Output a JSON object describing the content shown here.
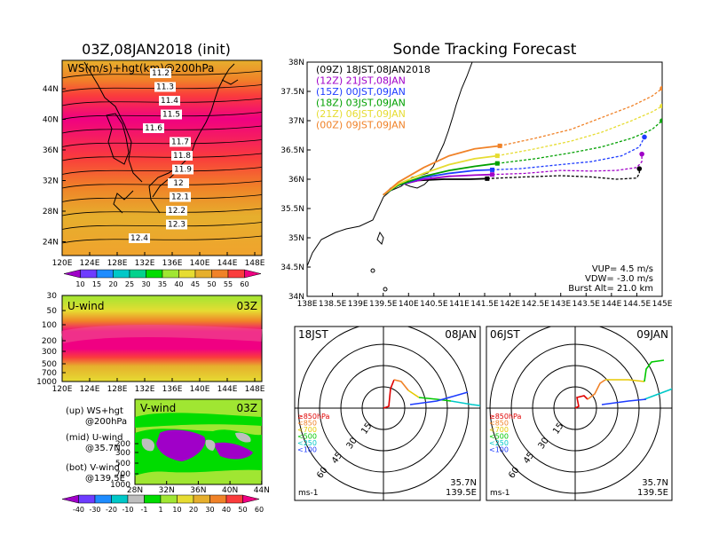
{
  "left": {
    "title": "03Z,08JAN2018 (init)",
    "map_label": "WS(m/s)+hgt(km)@200hPa",
    "lat_ticks": [
      "44N",
      "40N",
      "36N",
      "32N",
      "28N",
      "24N"
    ],
    "lon_ticks": [
      "120E",
      "124E",
      "128E",
      "132E",
      "136E",
      "140E",
      "144E",
      "148E"
    ],
    "contours": [
      "11.2",
      "11.3",
      "11.4",
      "11.5",
      "11.6",
      "11.7",
      "11.8",
      "11.9",
      "12",
      "12.1",
      "12.2",
      "12.3",
      "12.4"
    ],
    "ws_colorbar": [
      "10",
      "15",
      "20",
      "25",
      "30",
      "35",
      "40",
      "45",
      "50",
      "55",
      "60"
    ],
    "uwind_label": "U-wind",
    "uwind_time": "03Z",
    "p_ticks": [
      "30",
      "50",
      "100",
      "200",
      "300",
      "500",
      "700",
      "1000"
    ],
    "vwind_label": "V-wind",
    "vwind_time": "03Z",
    "vwind_p_ticks": [
      "200",
      "300",
      "500",
      "700",
      "1000"
    ],
    "vwind_lat_ticks": [
      "28N",
      "32N",
      "36N",
      "40N",
      "44N"
    ],
    "wind_colorbar": [
      "-40",
      "-30",
      "-20",
      "-10",
      "-1",
      "1",
      "10",
      "20",
      "30",
      "40",
      "50",
      "60"
    ],
    "legend": [
      {
        "a": "(up) WS+hgt",
        "b": "@200hPa"
      },
      {
        "a": "(mid) U-wind",
        "b": "@35.7N"
      },
      {
        "a": "(bot) V-wind",
        "b": "@139.5E"
      }
    ],
    "colors": {
      "ws": [
        "#a000c8",
        "#6e3cff",
        "#1e8cff",
        "#00c8c8",
        "#00d28c",
        "#00dc00",
        "#a0e632",
        "#e6dc32",
        "#e6af2d",
        "#f08228",
        "#fa3c3c",
        "#f00082"
      ],
      "wind": [
        "#a000c8",
        "#6e3cff",
        "#1e8cff",
        "#00c8c8",
        "#bebebe",
        "#00dc00",
        "#a0e632",
        "#e6dc32",
        "#e6af2d",
        "#f08228",
        "#fa3c3c",
        "#f00082"
      ]
    }
  },
  "tracking": {
    "title": "Sonde Tracking Forecast",
    "lat_ticks": [
      "38N",
      "37.5N",
      "37N",
      "36.5N",
      "36N",
      "35.5N",
      "35N",
      "34.5N",
      "34N"
    ],
    "lon_ticks": [
      "138E",
      "138.5E",
      "139E",
      "139.5E",
      "140E",
      "140.5E",
      "141E",
      "141.5E",
      "142E",
      "142.5E",
      "143E",
      "143.5E",
      "144E",
      "144.5E",
      "145E"
    ],
    "info": {
      "vup": "VUP= 4.5 m/s",
      "vdw": "VDW= -3.0 m/s",
      "burst": "Burst Alt= 21.0 km"
    }
  },
  "chart_data": {
    "type": "line",
    "title": "Sonde Tracking Forecast",
    "xlabel": "",
    "ylabel": "",
    "xlim": [
      138,
      145
    ],
    "ylim": [
      34,
      38
    ],
    "series": [
      {
        "name": "(09Z) 18JST,08JAN2018",
        "color": "#000000",
        "ascent": [
          [
            139.5,
            35.73
          ],
          [
            139.8,
            35.9
          ],
          [
            140.2,
            35.98
          ],
          [
            140.7,
            36.0
          ],
          [
            141.2,
            36.0
          ],
          [
            141.55,
            36.01
          ]
        ],
        "descent": [
          [
            141.55,
            36.01
          ],
          [
            142.3,
            36.04
          ],
          [
            143.0,
            36.06
          ],
          [
            143.6,
            36.04
          ],
          [
            144.1,
            36.0
          ],
          [
            144.5,
            36.02
          ],
          [
            144.55,
            36.1
          ],
          [
            144.55,
            36.18
          ]
        ],
        "ascent_end": [
          141.55,
          36.01
        ],
        "burst": [
          144.55,
          36.18
        ]
      },
      {
        "name": "(12Z) 21JST,08JAN",
        "color": "#a000c8",
        "ascent": [
          [
            139.5,
            35.73
          ],
          [
            139.8,
            35.9
          ],
          [
            140.3,
            36.0
          ],
          [
            140.8,
            36.05
          ],
          [
            141.3,
            36.07
          ],
          [
            141.65,
            36.08
          ]
        ],
        "descent": [
          [
            141.65,
            36.08
          ],
          [
            142.3,
            36.1
          ],
          [
            143.0,
            36.15
          ],
          [
            143.6,
            36.14
          ],
          [
            144.1,
            36.15
          ],
          [
            144.5,
            36.2
          ],
          [
            144.6,
            36.3
          ],
          [
            144.6,
            36.43
          ]
        ],
        "ascent_end": [
          141.65,
          36.08
        ],
        "burst": [
          144.6,
          36.43
        ]
      },
      {
        "name": "(15Z) 00JST,09JAN",
        "color": "#1e3cff",
        "ascent": [
          [
            139.5,
            35.73
          ],
          [
            139.8,
            35.9
          ],
          [
            140.3,
            36.03
          ],
          [
            140.8,
            36.1
          ],
          [
            141.3,
            36.15
          ],
          [
            141.65,
            36.16
          ]
        ],
        "descent": [
          [
            141.65,
            36.16
          ],
          [
            142.2,
            36.18
          ],
          [
            143.0,
            36.25
          ],
          [
            143.6,
            36.3
          ],
          [
            144.2,
            36.4
          ],
          [
            144.55,
            36.55
          ],
          [
            144.65,
            36.72
          ]
        ],
        "ascent_end": [
          141.65,
          36.16
        ],
        "burst": [
          144.65,
          36.72
        ]
      },
      {
        "name": "(18Z) 03JST,09JAN",
        "color": "#00a000",
        "ascent": [
          [
            139.5,
            35.73
          ],
          [
            139.8,
            35.9
          ],
          [
            140.3,
            36.05
          ],
          [
            140.8,
            36.15
          ],
          [
            141.3,
            36.22
          ],
          [
            141.75,
            36.27
          ]
        ],
        "descent": [
          [
            141.75,
            36.27
          ],
          [
            142.5,
            36.35
          ],
          [
            143.2,
            36.45
          ],
          [
            143.8,
            36.55
          ],
          [
            144.4,
            36.7
          ],
          [
            144.8,
            36.85
          ],
          [
            145.0,
            37.0
          ]
        ],
        "ascent_end": [
          141.75,
          36.27
        ],
        "burst": [
          145.0,
          37.0
        ]
      },
      {
        "name": "(21Z) 06JST,09JAN",
        "color": "#e6dc32",
        "ascent": [
          [
            139.5,
            35.73
          ],
          [
            139.8,
            35.92
          ],
          [
            140.3,
            36.1
          ],
          [
            140.8,
            36.25
          ],
          [
            141.3,
            36.35
          ],
          [
            141.75,
            36.4
          ]
        ],
        "descent": [
          [
            141.75,
            36.4
          ],
          [
            142.5,
            36.52
          ],
          [
            143.2,
            36.65
          ],
          [
            143.8,
            36.8
          ],
          [
            144.4,
            37.0
          ],
          [
            144.8,
            37.15
          ],
          [
            145.0,
            37.25
          ]
        ],
        "ascent_end": [
          141.75,
          36.4
        ],
        "burst": [
          145.0,
          37.25
        ]
      },
      {
        "name": "(00Z) 09JST,09JAN",
        "color": "#f08228",
        "ascent": [
          [
            139.5,
            35.73
          ],
          [
            139.8,
            35.95
          ],
          [
            140.3,
            36.2
          ],
          [
            140.8,
            36.4
          ],
          [
            141.3,
            36.52
          ],
          [
            141.8,
            36.57
          ]
        ],
        "descent": [
          [
            141.8,
            36.57
          ],
          [
            142.5,
            36.7
          ],
          [
            143.2,
            36.85
          ],
          [
            143.8,
            37.05
          ],
          [
            144.4,
            37.25
          ],
          [
            144.8,
            37.42
          ],
          [
            145.0,
            37.55
          ]
        ],
        "ascent_end": [
          141.8,
          36.57
        ],
        "burst": [
          145.0,
          37.55
        ]
      }
    ]
  },
  "hodo1": {
    "time": "18JST",
    "date": "08JAN",
    "loc1": "35.7N",
    "loc2": "139.5E",
    "unit": "ms-1",
    "rings": [
      "15",
      "30",
      "45",
      "60"
    ],
    "levels": [
      "≥850hPa",
      "<850",
      "<700",
      "<500",
      "<250",
      "<100"
    ],
    "level_colors": [
      "#e00000",
      "#f08228",
      "#e6c800",
      "#00c800",
      "#00c8c8",
      "#1e3cff"
    ]
  },
  "hodo2": {
    "time": "06JST",
    "date": "09JAN",
    "loc1": "35.7N",
    "loc2": "139.5E",
    "unit": "ms-1",
    "rings": [
      "15",
      "30",
      "45",
      "60"
    ],
    "levels": [
      "≥850hPa",
      "<850",
      "<700",
      "<500",
      "<250",
      "<100"
    ],
    "level_colors": [
      "#e00000",
      "#f08228",
      "#e6c800",
      "#00c800",
      "#00c8c8",
      "#1e3cff"
    ]
  }
}
